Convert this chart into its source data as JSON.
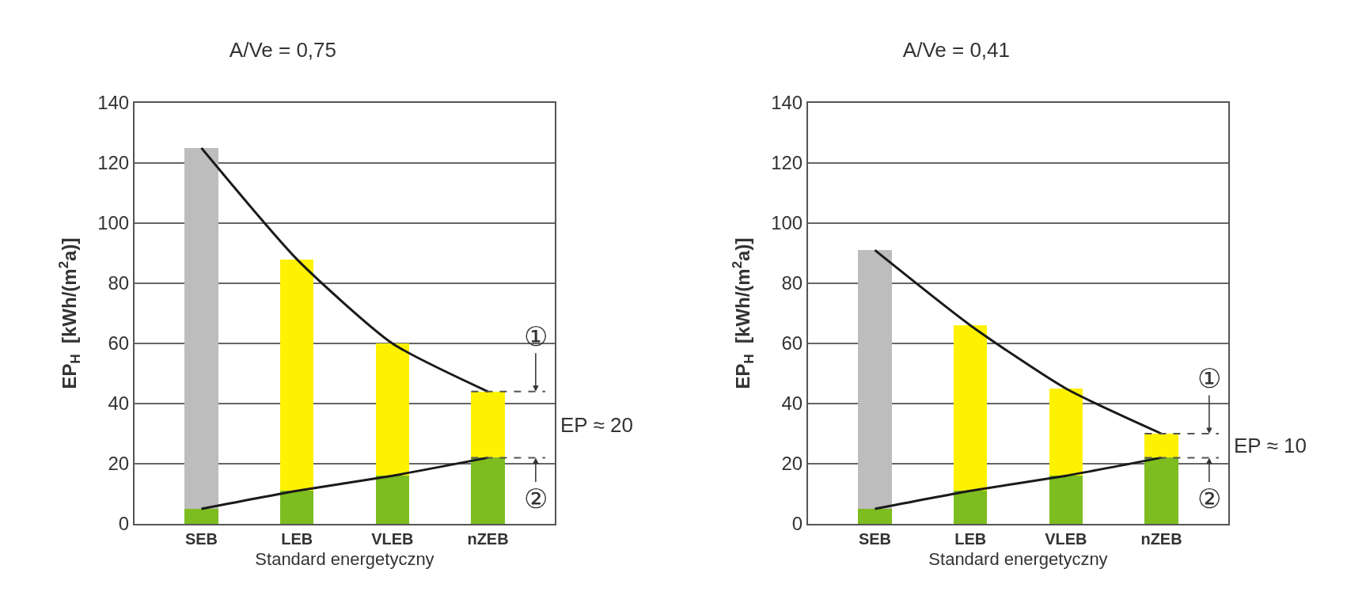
{
  "chart_data": [
    {
      "type": "bar",
      "stacked": true,
      "title": "A/Ve = 0,75",
      "xlabel": "Standard energetyczny",
      "ylabel": "EP$_{H}$  [kWh/(m$^{2}$a)]",
      "categories": [
        "SEB",
        "LEB",
        "VLEB",
        "nZEB"
      ],
      "series": [
        {
          "color": "#7dbd1f",
          "values": [
            5,
            11,
            16,
            22
          ]
        },
        {
          "colors": [
            "#bdbdbd",
            "#fff200",
            "#fff200",
            "#fff200"
          ],
          "values": [
            120,
            77,
            44,
            22
          ]
        },
        {
          "type": "line",
          "color": "#1a1a1a",
          "values": [
            125,
            88,
            60,
            44
          ]
        },
        {
          "type": "line",
          "color": "#1a1a1a",
          "values": [
            5,
            11,
            16,
            22
          ]
        }
      ],
      "ylim": [
        0,
        140
      ],
      "yticks": [
        0,
        20,
        40,
        60,
        80,
        100,
        120,
        140
      ],
      "grid": "y",
      "ref_lines": [
        {
          "axis": "y",
          "value": 44,
          "line_style": "dashed",
          "color": "#555555"
        },
        {
          "axis": "y",
          "value": 22,
          "line_style": "dashed",
          "color": "#555555"
        }
      ],
      "annotations": [
        {
          "text": "①",
          "y": 44
        },
        {
          "text": "②",
          "y": 22
        },
        "EP ≈ 20"
      ]
    },
    {
      "type": "bar",
      "stacked": true,
      "title": "A/Ve = 0,41",
      "xlabel": "Standard energetyczny",
      "ylabel": "EP$_{H}$  [kWh/(m$^{2}$a)]",
      "categories": [
        "SEB",
        "LEB",
        "VLEB",
        "nZEB"
      ],
      "series": [
        {
          "color": "#7dbd1f",
          "values": [
            5,
            11,
            16,
            22
          ]
        },
        {
          "colors": [
            "#bdbdbd",
            "#fff200",
            "#fff200",
            "#fff200"
          ],
          "values": [
            86,
            55,
            29,
            8
          ]
        },
        {
          "type": "line",
          "color": "#1a1a1a",
          "values": [
            91,
            66,
            45,
            30
          ]
        },
        {
          "type": "line",
          "color": "#1a1a1a",
          "values": [
            5,
            11,
            16,
            22
          ]
        }
      ],
      "ylim": [
        0,
        140
      ],
      "yticks": [
        0,
        20,
        40,
        60,
        80,
        100,
        120,
        140
      ],
      "grid": "y",
      "ref_lines": [
        {
          "axis": "y",
          "value": 30,
          "line_style": "dashed",
          "color": "#555555"
        },
        {
          "axis": "y",
          "value": 22,
          "line_style": "dashed",
          "color": "#555555"
        }
      ],
      "annotations": [
        {
          "text": "①",
          "y": 30
        },
        {
          "text": "②",
          "y": 22
        },
        "EP ≈ 10"
      ]
    }
  ]
}
